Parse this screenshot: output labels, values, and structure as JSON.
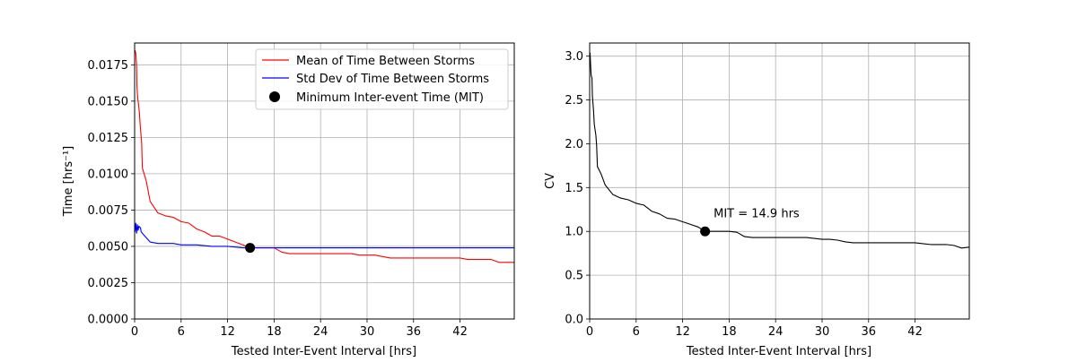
{
  "chart_data": [
    {
      "type": "line",
      "xlabel": "Tested Inter-Event Interval [hrs]",
      "ylabel": "Time [hrs⁻¹]",
      "xlim": [
        0,
        49
      ],
      "ylim": [
        0,
        0.019
      ],
      "xticks": [
        "0",
        "6",
        "12",
        "18",
        "24",
        "30",
        "36",
        "42"
      ],
      "yticks": [
        "0.0000",
        "0.0025",
        "0.0050",
        "0.0075",
        "0.0100",
        "0.0125",
        "0.0150",
        "0.0175"
      ],
      "grid": true,
      "legend_position": "top-right",
      "legend": [
        "Mean of Time Between Storms",
        "Std Dev of Time Between Storms",
        "Minimum Inter-event Time (MIT)"
      ],
      "series": [
        {
          "name": "Mean of Time Between Storms",
          "color": "#ff0000",
          "x": [
            0.05,
            0.15,
            0.25,
            0.3,
            0.4,
            0.5,
            0.6,
            0.7,
            0.8,
            0.9,
            1.0,
            1.5,
            2.0,
            3.0,
            4.0,
            5.0,
            6.0,
            7.0,
            8.0,
            9.0,
            10.0,
            11.0,
            12.0,
            13.0,
            14.0,
            14.9,
            16.0,
            17.0,
            18.0,
            19.0,
            20.0,
            21.0,
            22.0,
            24.0,
            26.0,
            28.0,
            29.0,
            30.0,
            31.0,
            32.0,
            33.0,
            34.0,
            36.0,
            38.0,
            40.0,
            42.0,
            43.0,
            44.0,
            46.0,
            47.0,
            48.0,
            49.0
          ],
          "y": [
            0.0185,
            0.0183,
            0.0175,
            0.016,
            0.0152,
            0.0148,
            0.0143,
            0.0135,
            0.0128,
            0.0122,
            0.0104,
            0.0095,
            0.0081,
            0.0073,
            0.0071,
            0.007,
            0.0067,
            0.0066,
            0.0062,
            0.006,
            0.0057,
            0.0057,
            0.0055,
            0.0053,
            0.0051,
            0.0049,
            0.0049,
            0.0049,
            0.0049,
            0.0046,
            0.0045,
            0.0045,
            0.0045,
            0.0045,
            0.0045,
            0.0045,
            0.0044,
            0.0044,
            0.0044,
            0.0043,
            0.0042,
            0.0042,
            0.0042,
            0.0042,
            0.0042,
            0.0042,
            0.0041,
            0.0041,
            0.0041,
            0.0039,
            0.0039,
            0.0039
          ]
        },
        {
          "name": "Std Dev of Time Between Storms",
          "color": "#0000ff",
          "x": [
            0.05,
            0.15,
            0.25,
            0.35,
            0.45,
            0.55,
            0.65,
            0.75,
            0.85,
            1.0,
            1.5,
            2.0,
            3.0,
            4.0,
            5.0,
            6.0,
            8.0,
            10.0,
            12.0,
            14.0,
            14.9,
            18.0,
            24.0,
            30.0,
            36.0,
            42.0,
            46.0,
            49.0
          ],
          "y": [
            0.006,
            0.0066,
            0.0059,
            0.0065,
            0.0061,
            0.0064,
            0.0063,
            0.0063,
            0.006,
            0.0059,
            0.0056,
            0.0053,
            0.0052,
            0.0052,
            0.0052,
            0.0051,
            0.0051,
            0.005,
            0.005,
            0.0049,
            0.0049,
            0.0049,
            0.0049,
            0.0049,
            0.0049,
            0.0049,
            0.0049,
            0.0049
          ]
        }
      ],
      "marker": {
        "name": "Minimum Inter-event Time (MIT)",
        "x": 14.9,
        "y": 0.0049,
        "color": "#000000"
      }
    },
    {
      "type": "line",
      "xlabel": "Tested Inter-Event Interval [hrs]",
      "ylabel": "CV",
      "xlim": [
        0,
        49
      ],
      "ylim": [
        0,
        3.15
      ],
      "xticks": [
        "0",
        "6",
        "12",
        "18",
        "24",
        "30",
        "36",
        "42"
      ],
      "yticks": [
        "0.0",
        "0.5",
        "1.0",
        "1.5",
        "2.0",
        "2.5",
        "3.0"
      ],
      "grid": true,
      "series": [
        {
          "color": "#000000",
          "x": [
            0.05,
            0.15,
            0.2,
            0.3,
            0.35,
            0.5,
            0.6,
            0.8,
            0.9,
            1.0,
            1.5,
            2.0,
            3.0,
            4.0,
            5.0,
            6.0,
            7.0,
            8.0,
            9.0,
            10.0,
            11.0,
            12.0,
            13.0,
            14.0,
            14.9,
            16.0,
            17.0,
            18.0,
            19.0,
            20.0,
            21.0,
            22.0,
            24.0,
            26.0,
            28.0,
            29.0,
            30.0,
            31.0,
            32.0,
            33.0,
            34.0,
            36.0,
            38.0,
            40.0,
            42.0,
            43.0,
            44.0,
            46.0,
            47.0,
            48.0,
            49.0
          ],
          "y": [
            3.04,
            2.85,
            2.78,
            2.75,
            2.55,
            2.38,
            2.22,
            2.1,
            1.98,
            1.74,
            1.65,
            1.53,
            1.42,
            1.38,
            1.36,
            1.32,
            1.3,
            1.23,
            1.2,
            1.15,
            1.14,
            1.11,
            1.08,
            1.05,
            1.0,
            1.0,
            1.0,
            1.0,
            0.99,
            0.94,
            0.93,
            0.93,
            0.93,
            0.93,
            0.93,
            0.92,
            0.91,
            0.91,
            0.9,
            0.88,
            0.87,
            0.87,
            0.87,
            0.87,
            0.87,
            0.86,
            0.85,
            0.85,
            0.84,
            0.81,
            0.82
          ]
        }
      ],
      "marker": {
        "x": 14.9,
        "y": 1.0,
        "color": "#000000"
      },
      "annotation": {
        "text": "MIT = 14.9 hrs",
        "x": 16.0,
        "y": 1.16
      }
    }
  ]
}
